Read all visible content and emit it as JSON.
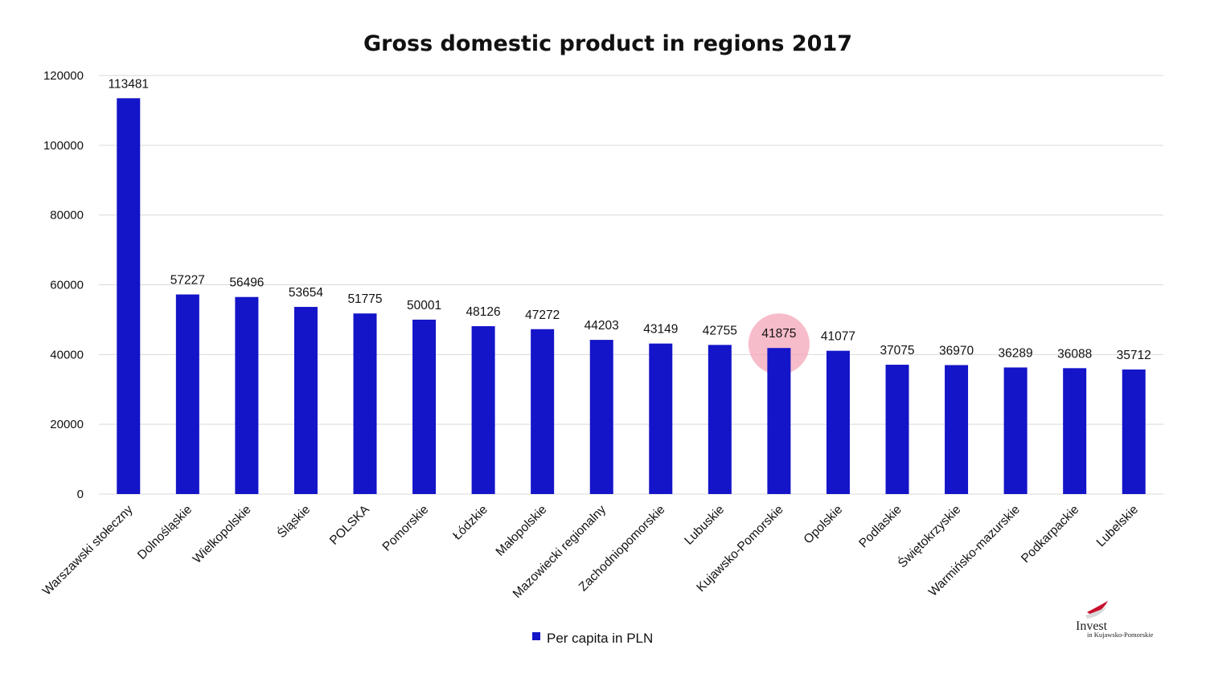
{
  "chart_data": {
    "type": "bar",
    "title": "Gross domestic product in regions 2017",
    "xlabel": "",
    "ylabel": "",
    "ylim": [
      0,
      120000
    ],
    "yticks": [
      0,
      20000,
      40000,
      60000,
      80000,
      100000,
      120000
    ],
    "grid": true,
    "legend_position": "bottom",
    "categories": [
      "Warszawski stołeczny",
      "Dolnośląskie",
      "Wielkopolskie",
      "Śląskie",
      "POLSKA",
      "Pomorskie",
      "Łódzkie",
      "Małopolskie",
      "Mazowiecki regionalny",
      "Zachodniopomorskie",
      "Lubuskie",
      "Kujawsko-Pomorskie",
      "Opolskie",
      "Podlaskie",
      "Świętokrzyskie",
      "Warmińsko-mazurskie",
      "Podkarpackie",
      "Lubelskie"
    ],
    "series": [
      {
        "name": "Per capita in PLN",
        "color": "#1414c8",
        "values": [
          113481,
          57227,
          56496,
          53654,
          51775,
          50001,
          48126,
          47272,
          44203,
          43149,
          42755,
          41875,
          41077,
          37075,
          36970,
          36289,
          36088,
          35712
        ]
      }
    ],
    "highlight": {
      "category": "Kujawsko-Pomorskie",
      "color": "#f4a0b4"
    }
  },
  "colors": {
    "bar": "#1414c8",
    "grid": "#d9d9d9",
    "highlight": "#f4a0b4",
    "logo_red": "#c8102e"
  },
  "logo": {
    "word": "Invest",
    "sub": "in Kujawsko-Pomorskie"
  }
}
